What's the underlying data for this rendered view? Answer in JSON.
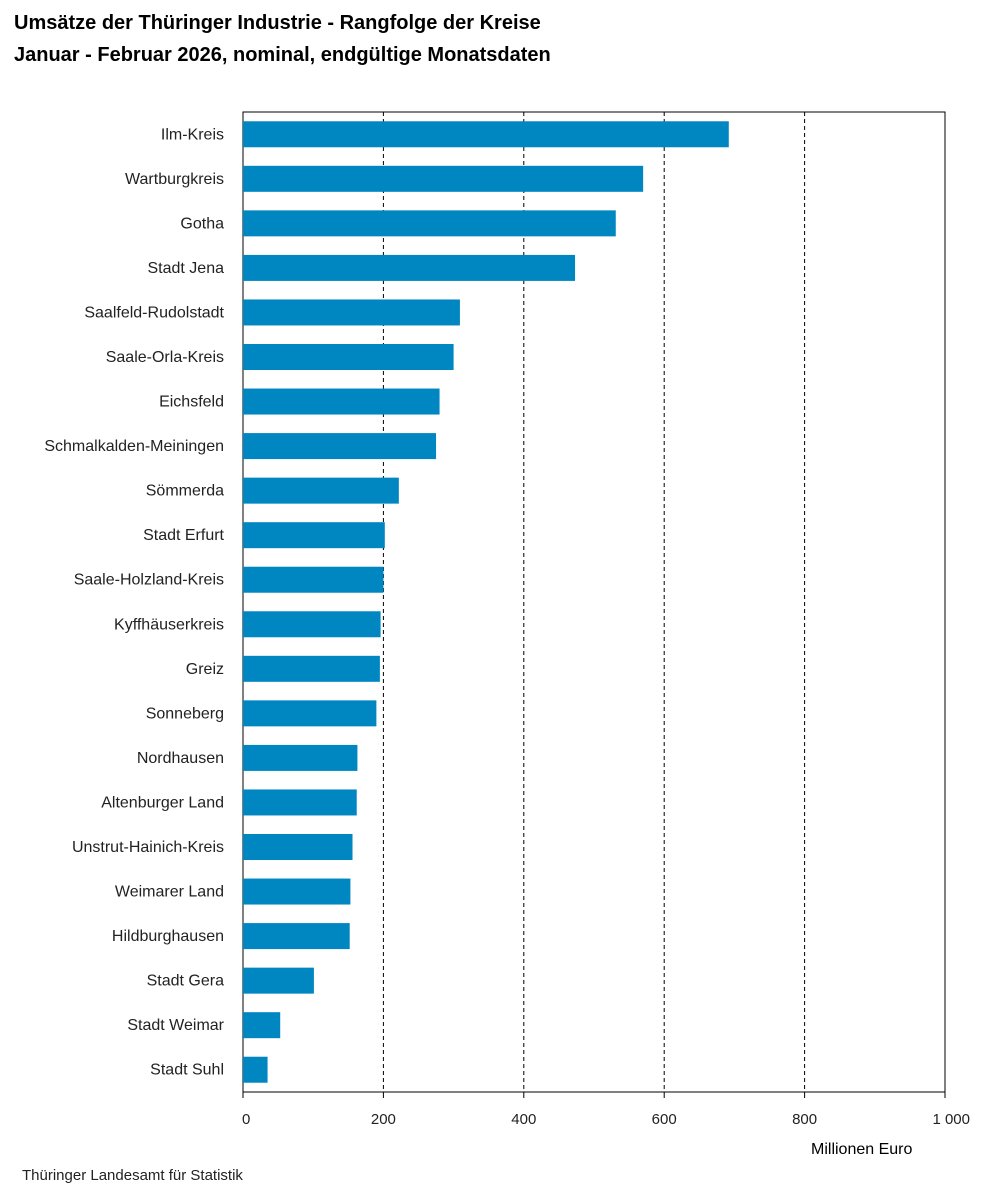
{
  "chart_data": {
    "type": "bar",
    "orientation": "horizontal",
    "title": "Umsätze der Thüringer Industrie - Rangfolge der Kreise",
    "subtitle": "Januar - Februar 2026, nominal, endgültige Monatsdaten",
    "xlabel": "Millionen Euro",
    "ylabel": "",
    "xlim": [
      0,
      1000
    ],
    "ticks": [
      0,
      200,
      400,
      600,
      800,
      1000
    ],
    "tick_labels": [
      "0",
      "200",
      "400",
      "600",
      "800",
      "1 000"
    ],
    "grid": "vertical dashed",
    "bar_color": "#0087c1",
    "categories": [
      "Ilm-Kreis",
      "Wartburgkreis",
      "Gotha",
      "Stadt Jena",
      "Saalfeld-Rudolstadt",
      "Saale-Orla-Kreis",
      "Eichsfeld",
      "Schmalkalden-Meiningen",
      "Sömmerda",
      "Stadt Erfurt",
      "Saale-Holzland-Kreis",
      "Kyffhäuserkreis",
      "Greiz",
      "Sonneberg",
      "Nordhausen",
      "Altenburger Land",
      "Unstrut-Hainich-Kreis",
      "Weimarer Land",
      "Hildburghausen",
      "Stadt Gera",
      "Stadt Weimar",
      "Stadt Suhl"
    ],
    "values": [
      692,
      570,
      531,
      473,
      309,
      300,
      280,
      275,
      222,
      202,
      200,
      196,
      195,
      190,
      163,
      162,
      156,
      153,
      152,
      101,
      53,
      35
    ]
  },
  "source": "Thüringer Landesamt für Statistik"
}
